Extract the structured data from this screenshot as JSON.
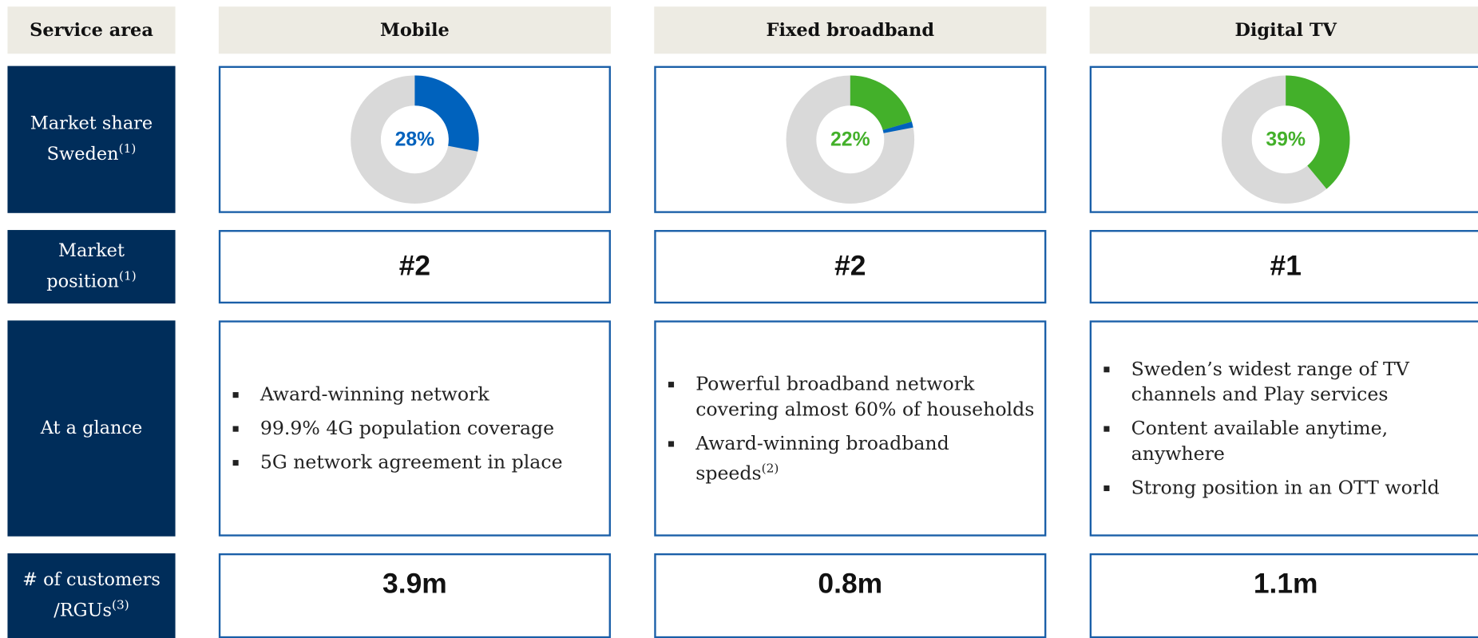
{
  "header": [
    "Service area",
    "Mobile",
    "Fixed broadband",
    "Digital TV"
  ],
  "row_labels": [
    {
      "lines": [
        "Market share",
        "Sweden"
      ],
      "note": "(1)"
    },
    {
      "lines": [
        "Market",
        "position"
      ],
      "note": "(1)"
    },
    {
      "lines": [
        "At a glance"
      ]
    },
    {
      "lines": [
        "# of customers",
        "/RGUs"
      ],
      "note": "(3)"
    }
  ],
  "columns": [
    {
      "share": {
        "value": 28,
        "label": "28%",
        "color": "#0062bd",
        "segments": [
          {
            "value": 28,
            "color": "#0062bd"
          }
        ]
      },
      "position": "#2",
      "glance": [
        {
          "text": "Award-winning network"
        },
        {
          "text": "99.9% 4G population coverage"
        },
        {
          "text": "5G network agreement in place"
        }
      ],
      "customers": "3.9m"
    },
    {
      "share": {
        "value": 22,
        "label": "22%",
        "color": "#43b02a",
        "segments": [
          {
            "value": 20.5,
            "color": "#43b02a"
          },
          {
            "value": 1.5,
            "color": "#0062bd"
          }
        ]
      },
      "position": "#2",
      "glance": [
        {
          "text": "Powerful broadband network covering almost 60% of households"
        },
        {
          "text": "Award-winning broadband speeds",
          "note": "(2)"
        }
      ],
      "customers": "0.8m"
    },
    {
      "share": {
        "value": 39,
        "label": "39%",
        "color": "#43b02a",
        "segments": [
          {
            "value": 39,
            "color": "#43b02a"
          }
        ]
      },
      "position": "#1",
      "glance": [
        {
          "text": "Sweden’s widest range of TV channels and Play services"
        },
        {
          "text": "Content available anytime, anywhere"
        },
        {
          "text": "Strong position in an OTT world"
        }
      ],
      "customers": "1.1m"
    }
  ]
}
